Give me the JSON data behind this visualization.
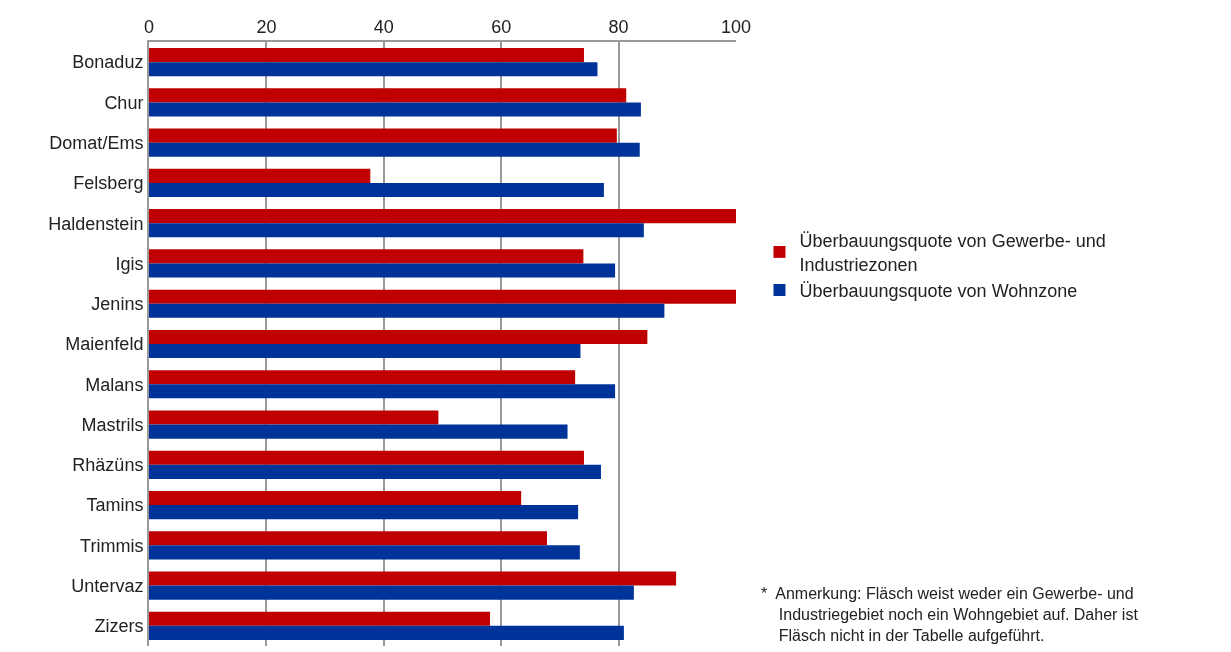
{
  "chart_data": {
    "type": "bar",
    "orientation": "horizontal",
    "categories": [
      "Bonaduz",
      "Chur",
      "Domat/Ems",
      "Felsberg",
      "Haldenstein",
      "Igis",
      "Jenins",
      "Maienfeld",
      "Malans",
      "Mastrils",
      "Rhäzüns",
      "Tamins",
      "Trimmis",
      "Untervaz",
      "Zizers"
    ],
    "series": [
      {
        "name": "Überbauungsquote von Gewerbe- und\nIndustriezonen",
        "color": "#c00000",
        "values": [
          74.1,
          81.3,
          79.7,
          37.7,
          100,
          74.0,
          100,
          84.9,
          72.6,
          49.3,
          74.1,
          63.4,
          67.8,
          89.8,
          58.1
        ]
      },
      {
        "name": "Überbauungsquote von Wohnzone",
        "color": "#003399",
        "values": [
          76.4,
          83.8,
          83.6,
          77.5,
          84.3,
          79.4,
          87.8,
          73.5,
          79.4,
          71.3,
          77.0,
          73.1,
          73.4,
          82.6,
          80.9
        ]
      }
    ],
    "xlim": [
      0,
      100
    ],
    "xticks": [
      0,
      20,
      40,
      60,
      80,
      100
    ],
    "grid": "x",
    "legend": "right",
    "annotations": [
      "*  Anmerkung: Fläsch weist weder ein Gewerbe- und\n    Industriegebiet noch ein Wohngebiet auf. Daher ist\n    Fläsch nicht in der Tabelle aufgeführt."
    ]
  }
}
